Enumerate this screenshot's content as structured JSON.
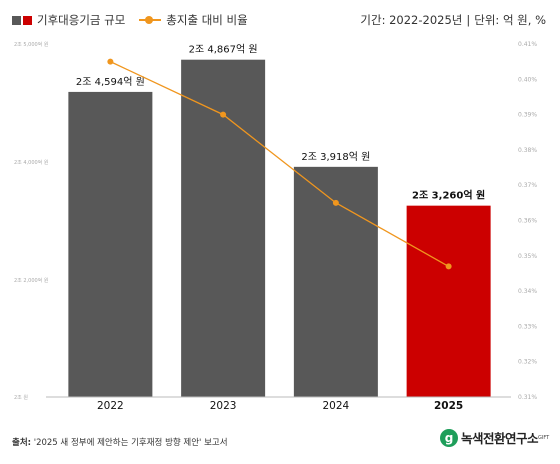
{
  "legend": {
    "bar_label": "기후대응기금 규모",
    "line_label": "총지출 대비 비율",
    "bar_colors": [
      "#585858",
      "#CC0000"
    ],
    "line_color": "#F0961E"
  },
  "period": {
    "range": "기간: 2022-2025년",
    "separator": "|",
    "unit": "단위: 억 원, %"
  },
  "chart_data": {
    "type": "bar",
    "categories": [
      "2022",
      "2023",
      "2024",
      "2025"
    ],
    "series": [
      {
        "name": "기후대응기금 규모",
        "type": "bar",
        "values": [
          45940,
          48670,
          39180,
          32600
        ],
        "colors": [
          "#585858",
          "#585858",
          "#585858",
          "#CC0000"
        ]
      },
      {
        "name": "총지출 대비 비율",
        "type": "line",
        "axis": "right",
        "values": [
          0.405,
          0.39,
          0.365,
          0.347
        ],
        "color": "#F0961E"
      }
    ],
    "data_labels": [
      "2조 4,594억 원",
      "2조 4,867억 원",
      "2조 3,918억 원",
      "2조 3,260억 원"
    ],
    "highlight_index": 3,
    "y_left": {
      "ylim": [
        0,
        50000
      ],
      "ticks": [
        0,
        20000,
        40000,
        50000
      ],
      "tick_labels": [
        "2조 원",
        "2조 2,000억 원",
        "2조 4,000억 원",
        "2조 5,000억 원"
      ]
    },
    "y_right": {
      "ylim": [
        0.31,
        0.41
      ],
      "tick_labels": [
        "0.31%",
        "0.32%",
        "0.33%",
        "0.34%",
        "0.35%",
        "0.36%",
        "0.37%",
        "0.38%",
        "0.39%",
        "0.40%",
        "0.41%"
      ]
    },
    "grid": false
  },
  "source": {
    "prefix": "출처:",
    "text": " '2025 새 정부에 제안하는 기후재정 방향 제안' 보고서"
  },
  "logo": {
    "mark": "g",
    "text": "녹색전환연구소",
    "superscript": "GIFT"
  }
}
